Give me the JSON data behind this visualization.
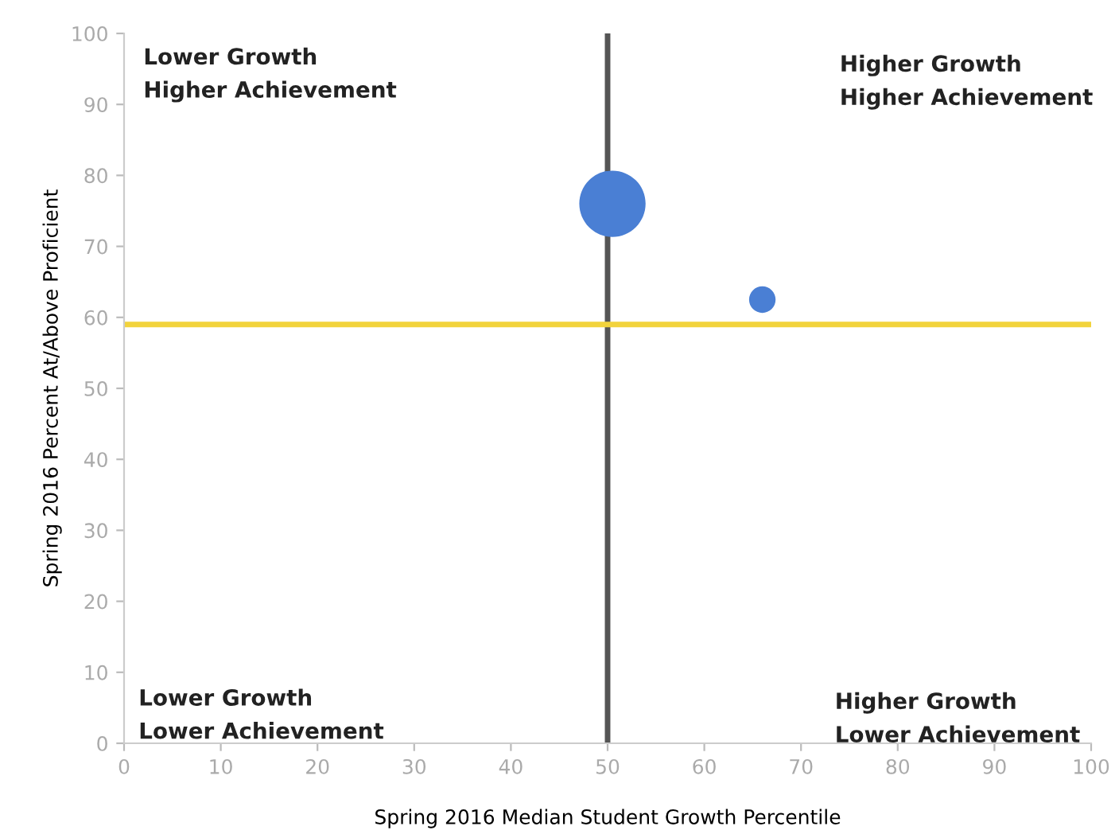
{
  "chart_data": {
    "type": "bubble",
    "xlabel": "Spring 2016 Median Student Growth Percentile",
    "ylabel": "Spring 2016 Percent At/Above Proficient",
    "x": [
      50.5,
      66
    ],
    "values": [
      76,
      62.5
    ],
    "sizes": [
      1,
      0.16
    ],
    "color": "#4a7fd4",
    "xlim": [
      0,
      100
    ],
    "ylim": [
      0,
      100
    ],
    "xticks": [
      0,
      10,
      20,
      30,
      40,
      50,
      60,
      70,
      80,
      90,
      100
    ],
    "yticks": [
      0,
      10,
      20,
      30,
      40,
      50,
      60,
      70,
      80,
      90,
      100
    ],
    "grid": false,
    "ref_lines": [
      {
        "axis": "x",
        "value": 50,
        "label": null,
        "color": "#555555"
      },
      {
        "axis": "y",
        "value": 59,
        "label": null,
        "color": "#f2d33c"
      }
    ],
    "annotations": [
      "Lower Growth\nHigher Achievement",
      "Higher Growth\nHigher Achievement",
      "Lower Growth\nLower Achievement",
      "Higher Growth\nLower Achievement"
    ]
  }
}
